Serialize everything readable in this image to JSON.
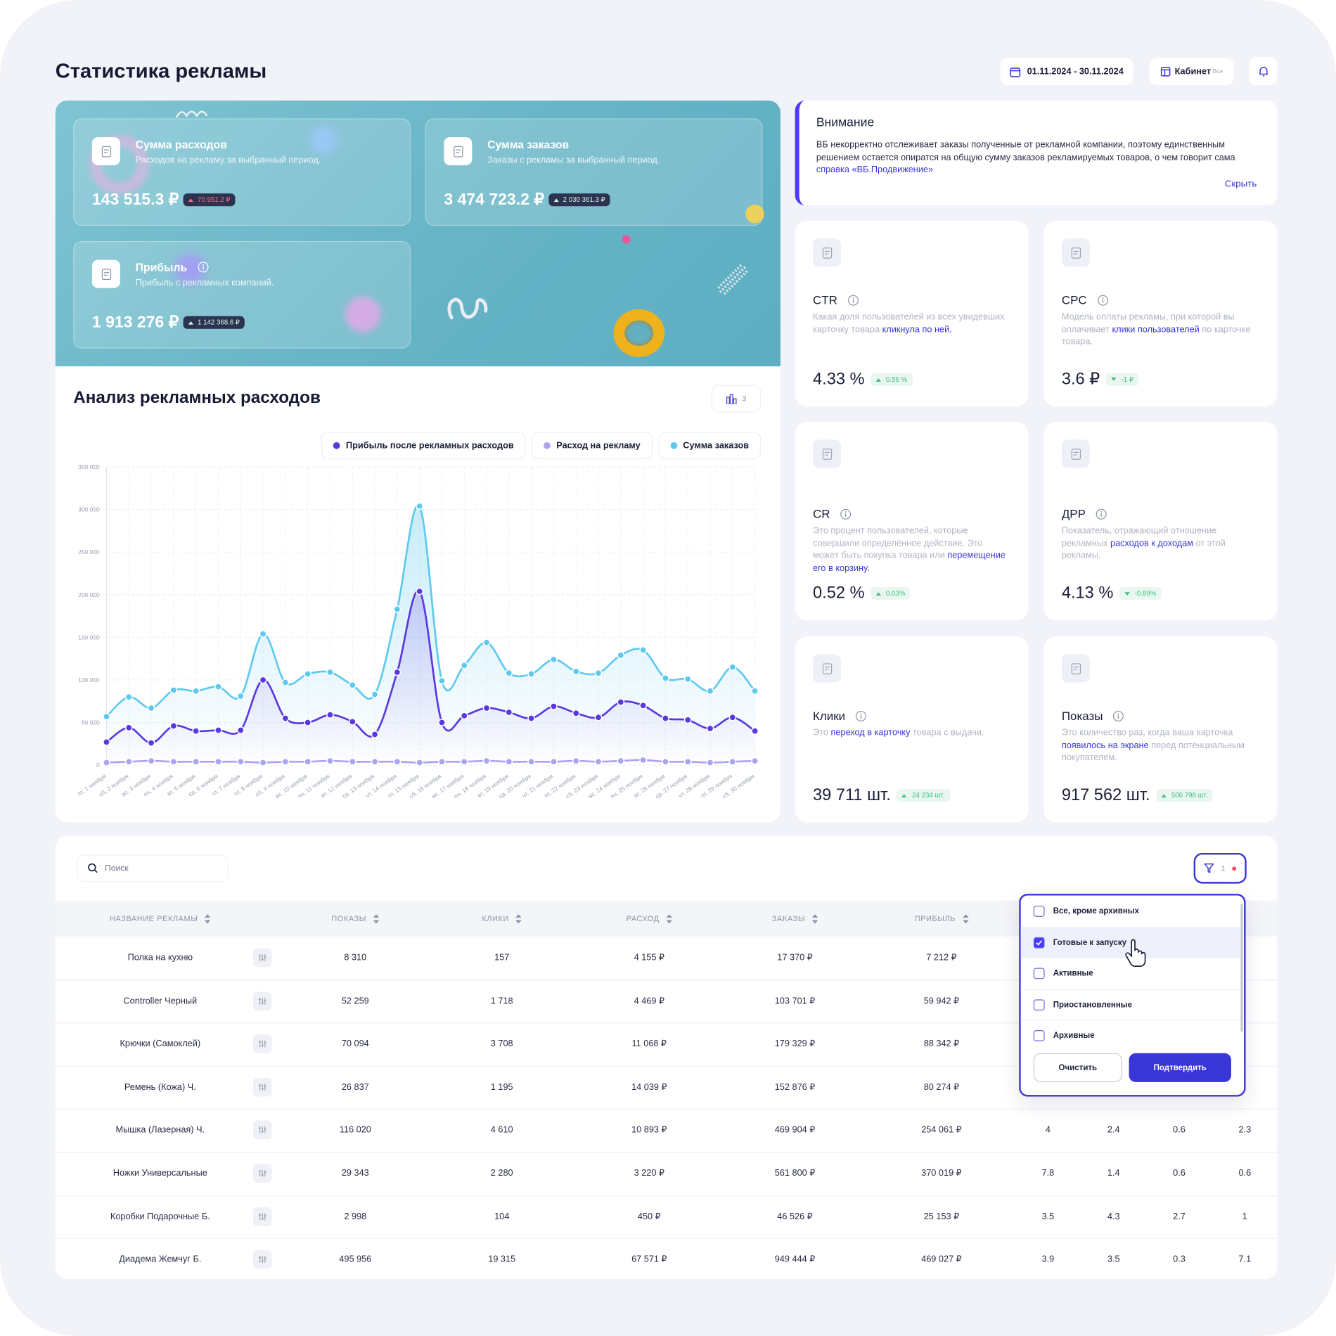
{
  "header": {
    "title": "Статистика рекламы",
    "date_range": "01.11.2024 - 30.11.2024",
    "cabinet": "Кабинет",
    "cabinet_value": "Все"
  },
  "summary_cards": [
    {
      "title": "Сумма расходов",
      "subtitle": "Расходов на рекламу за выбранный период.",
      "value": "143 515.3 ₽",
      "delta": "70 951.2 ₽",
      "delta_color": "#ff6b7a",
      "info": false
    },
    {
      "title": "Сумма заказов",
      "subtitle": "Заказы с рекламы за выбранный период.",
      "value": "3 474 723.2 ₽",
      "delta": "2 030 361.3 ₽",
      "delta_color": "#d8f5e6",
      "info": false
    },
    {
      "title": "Прибыль",
      "subtitle": "Прибыль с рекламных компаний.",
      "value": "1 913 276 ₽",
      "delta": "1 142 368.6 ₽",
      "delta_color": "#d8f5e6",
      "info": true
    }
  ],
  "notice": {
    "title": "Внимание",
    "text": "ВБ некорректно отслеживает заказы полученные от рекламной компании, поэтому единственным решением остается опиратся на общую сумму заказов рекламируемых товаров, о чем говорит сама ",
    "link": "справка «ВБ.Продвижение»",
    "hide": "Скрыть"
  },
  "metrics": [
    {
      "title": "CTR",
      "description": {
        "before": "Какая доля пользователей из всех увидевших карточку товара ",
        "link": "кликнула по ней."
      },
      "value": "4.33 %",
      "delta": "0.56 %",
      "direction": "up"
    },
    {
      "title": "CPC",
      "description": {
        "before": "Модель оплаты рекламы, при которой вы оплачивает ",
        "link": "клики пользователей",
        "after": " по карточке товара."
      },
      "value": "3.6 ₽",
      "delta": "-1 ₽",
      "direction": "down"
    },
    {
      "title": "CR",
      "description": {
        "before": "Это процент пользователей, которые совершили определённое действие. Это может быть покупка товара или ",
        "link": "перемещение его в корзину."
      },
      "value": "0.52 %",
      "delta": "0.03%",
      "direction": "up"
    },
    {
      "title": "ДРР",
      "description": {
        "before": "Показатель, отражающий отношение рекламных ",
        "link": "расходов к доходам",
        "after": " от этой рекламы."
      },
      "value": "4.13 %",
      "delta": "-0.89%",
      "direction": "down"
    },
    {
      "title": "Клики",
      "description": {
        "before": "Это ",
        "link": "переход в карточку",
        "after": " товара с выдачи."
      },
      "value": "39 711 шт.",
      "delta": "24 234 шт.",
      "direction": "up"
    },
    {
      "title": "Показы",
      "description": {
        "before": "Это количество раз, когда ваша карточка ",
        "link": "появилось на экране",
        "after": " перед потенциальным покупателем."
      },
      "value": "917 562 шт.",
      "delta": "506 798 шт.",
      "direction": "up"
    }
  ],
  "chart_data": {
    "type": "line",
    "title": "Анализ рекламных расходов",
    "badge_count": 3,
    "legend": "top-right",
    "grid": true,
    "x": [
      "пт, 1 ноября",
      "сб, 2 ноября",
      "вс, 3 ноября",
      "пн, 4 ноября",
      "вт, 5 ноября",
      "ср, 6 ноября",
      "чт, 7 ноября",
      "пт, 8 ноября",
      "сб, 9 ноября",
      "вс, 10 ноября",
      "пн, 11 ноября",
      "вт, 12 ноября",
      "ср, 13 ноября",
      "чт, 14 ноября",
      "пт, 15 ноября",
      "сб, 16 ноября",
      "вс, 17 ноября",
      "пн, 18 ноября",
      "вт, 19 ноября",
      "ср, 20 ноября",
      "чт, 21 ноября",
      "пт, 22 ноября",
      "сб, 23 ноября",
      "вс, 24 ноября",
      "пн, 25 ноября",
      "вт, 26 ноября",
      "ср, 27 ноября",
      "чт, 28 ноября",
      "пт, 29 ноября",
      "сб, 30 ноября"
    ],
    "ylim": [
      0,
      350000
    ],
    "yticks": [
      0,
      {
        "value": 50000,
        "label": "50 000"
      },
      {
        "value": 100000,
        "label": "100 000"
      },
      {
        "value": 150000,
        "label": "150 000"
      },
      {
        "value": 200000,
        "label": "200 000"
      },
      {
        "value": 250000,
        "label": "250 000"
      },
      {
        "value": 300000,
        "label": "300 000"
      },
      {
        "value": 350000,
        "label": "350 000"
      }
    ],
    "series": [
      {
        "name": "Прибыль после рекламных расходов",
        "color": "#5a38e0",
        "area": true,
        "values": [
          27000,
          44000,
          26000,
          46000,
          40000,
          41000,
          41000,
          100000,
          55000,
          50000,
          59000,
          51000,
          36000,
          109000,
          204000,
          50000,
          58000,
          67000,
          62000,
          55000,
          69000,
          61000,
          56000,
          74000,
          70000,
          55000,
          53000,
          43000,
          56000,
          40000
        ]
      },
      {
        "name": "Расход на рекламу",
        "color": "#aaa4f0",
        "area": false,
        "values": [
          3000,
          4000,
          5000,
          4000,
          4000,
          4000,
          4000,
          3000,
          4000,
          4000,
          5000,
          4000,
          4000,
          4000,
          3000,
          4000,
          4000,
          5000,
          4000,
          4000,
          4000,
          5000,
          4000,
          5000,
          6000,
          4000,
          4000,
          3000,
          4000,
          5000
        ]
      },
      {
        "name": "Сумма заказов",
        "color": "#5ec9ee",
        "area": true,
        "values": [
          57000,
          80000,
          67000,
          88000,
          87000,
          92000,
          81000,
          154000,
          97000,
          107000,
          109000,
          94000,
          83000,
          183000,
          304000,
          99000,
          117000,
          144000,
          108000,
          107000,
          124000,
          110000,
          108000,
          129000,
          135000,
          102000,
          101000,
          87000,
          115000,
          87000
        ]
      }
    ]
  },
  "table": {
    "search_placeholder": "Поиск",
    "filter_count": 1,
    "headers": [
      "НАЗВАНИЕ РЕКЛАМЫ",
      "ПОКАЗЫ",
      "КЛИКИ",
      "РАСХОД",
      "ЗАКАЗЫ",
      "ПРИБЫЛЬ"
    ],
    "rows": [
      [
        "Полка на кухню",
        "8 310",
        "157",
        "4 155 ₽",
        "17 370 ₽",
        "7 212 ₽"
      ],
      [
        "Controller Черный",
        "52 259",
        "1 718",
        "4 469 ₽",
        "103 701 ₽",
        "59 942 ₽"
      ],
      [
        "Крючки (Самоклей)",
        "70 094",
        "3 708",
        "11 068 ₽",
        "179 329 ₽",
        "88 342 ₽"
      ],
      [
        "Ремень (Кожа) Ч.",
        "26 837",
        "1 195",
        "14 039 ₽",
        "152 876 ₽",
        "80 274 ₽"
      ],
      [
        "Мышка (Лазерная) Ч.",
        "116 020",
        "4 610",
        "10 893 ₽",
        "469 904 ₽",
        "254 061 ₽",
        "4",
        "2.4",
        "0.6",
        "2.3"
      ],
      [
        "Ножки Универсальные",
        "29 343",
        "2 280",
        "3 220 ₽",
        "561 800 ₽",
        "370 019 ₽",
        "7.8",
        "1.4",
        "0.6",
        "0.6"
      ],
      [
        "Коробки Подарочные Б.",
        "2 998",
        "104",
        "450 ₽",
        "46 526 ₽",
        "25 153 ₽",
        "3.5",
        "4.3",
        "2.7",
        "1"
      ],
      [
        "Диадема Жемчуг Б.",
        "495 956",
        "19 315",
        "67 571 ₽",
        "949 444 ₽",
        "469 027 ₽",
        "3.9",
        "3.5",
        "0.3",
        "7.1"
      ]
    ]
  },
  "filter_dropdown": {
    "options": [
      {
        "label": "Все, кроме архивных",
        "checked": false
      },
      {
        "label": "Готовые к запуску",
        "checked": true
      },
      {
        "label": "Активные",
        "checked": false
      },
      {
        "label": "Приостановленные",
        "checked": false
      },
      {
        "label": "Архивные",
        "checked": false
      }
    ],
    "clear": "Очистить",
    "confirm": "Подтвердить"
  }
}
